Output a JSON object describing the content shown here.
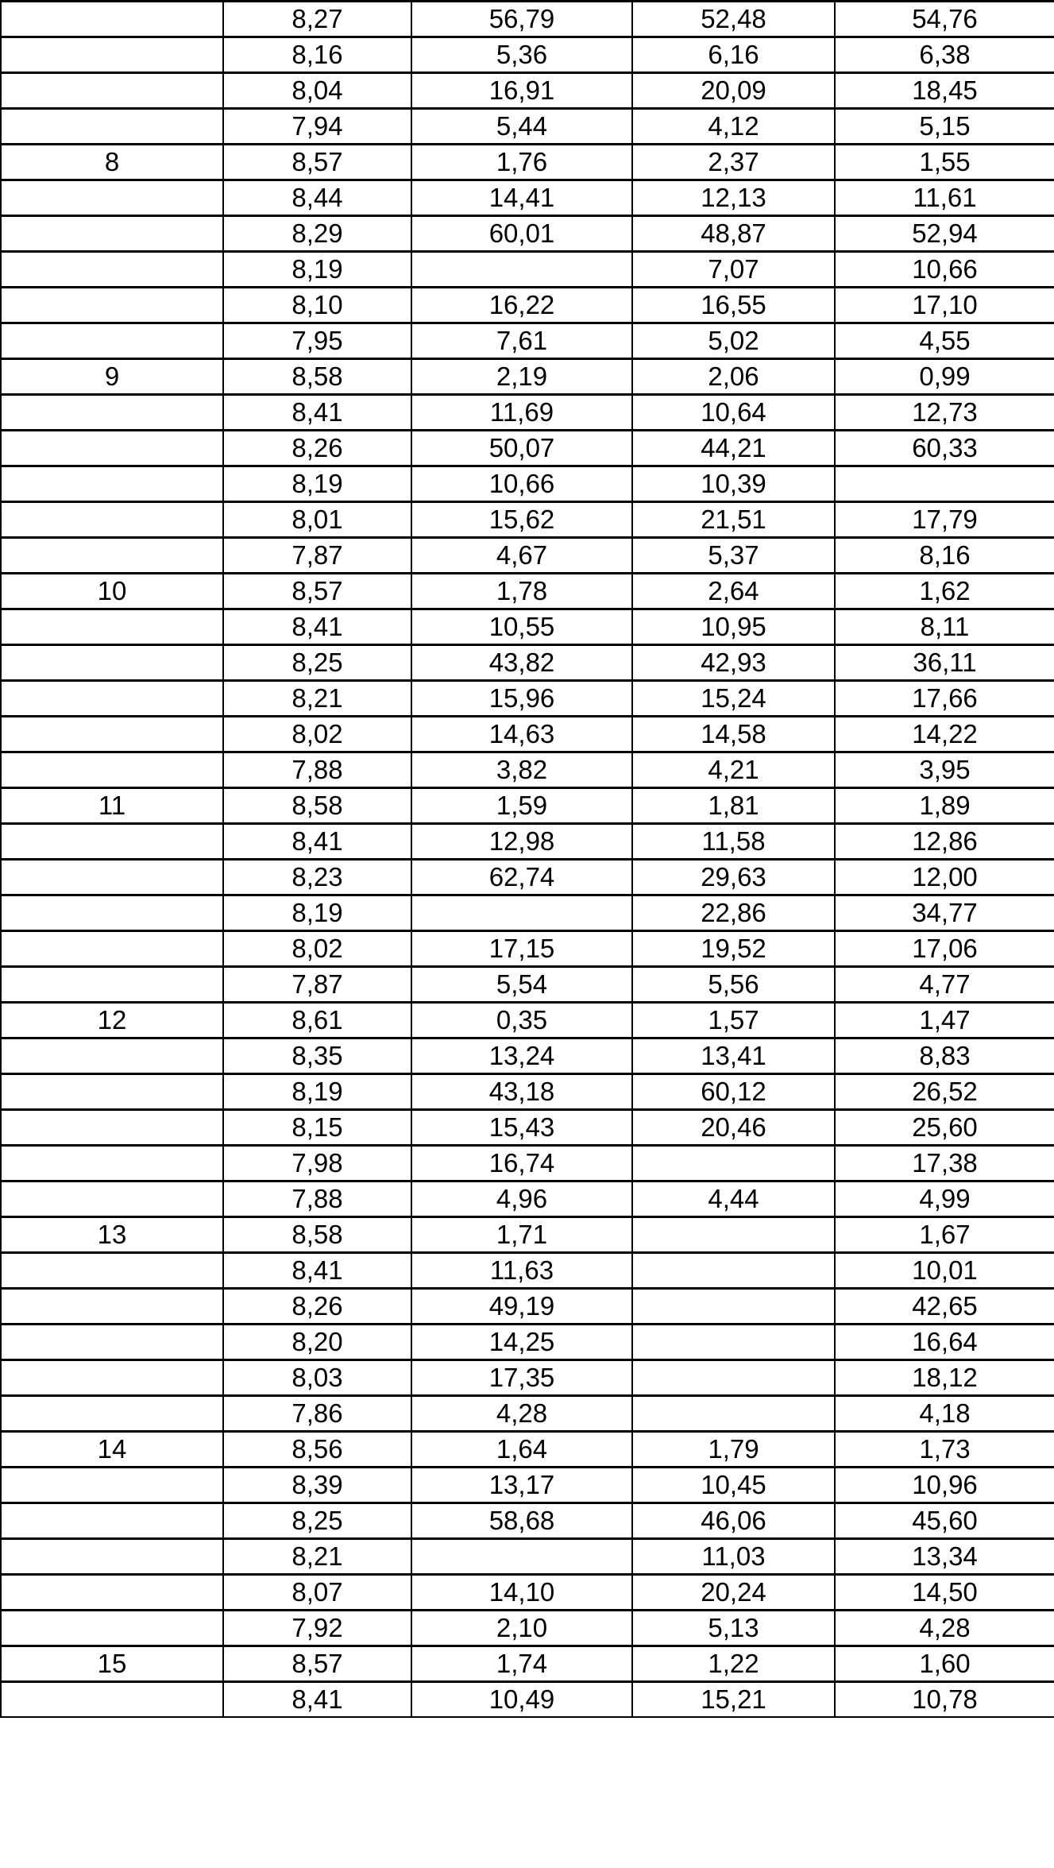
{
  "rows": [
    [
      "",
      "8,27",
      "56,79",
      "52,48",
      "54,76"
    ],
    [
      "",
      "8,16",
      "5,36",
      "6,16",
      "6,38"
    ],
    [
      "",
      "8,04",
      "16,91",
      "20,09",
      "18,45"
    ],
    [
      "",
      "7,94",
      "5,44",
      "4,12",
      "5,15"
    ],
    [
      "8",
      "8,57",
      "1,76",
      "2,37",
      "1,55"
    ],
    [
      "",
      "8,44",
      "14,41",
      "12,13",
      "11,61"
    ],
    [
      "",
      "8,29",
      "60,01",
      "48,87",
      "52,94"
    ],
    [
      "",
      "8,19",
      "",
      "7,07",
      "10,66"
    ],
    [
      "",
      "8,10",
      "16,22",
      "16,55",
      "17,10"
    ],
    [
      "",
      "7,95",
      "7,61",
      "5,02",
      "4,55"
    ],
    [
      "9",
      "8,58",
      "2,19",
      "2,06",
      "0,99"
    ],
    [
      "",
      "8,41",
      "11,69",
      "10,64",
      "12,73"
    ],
    [
      "",
      "8,26",
      "50,07",
      "44,21",
      "60,33"
    ],
    [
      "",
      "8,19",
      "10,66",
      "10,39",
      ""
    ],
    [
      "",
      "8,01",
      "15,62",
      "21,51",
      "17,79"
    ],
    [
      "",
      "7,87",
      "4,67",
      "5,37",
      "8,16"
    ],
    [
      "10",
      "8,57",
      "1,78",
      "2,64",
      "1,62"
    ],
    [
      "",
      "8,41",
      "10,55",
      "10,95",
      "8,11"
    ],
    [
      "",
      "8,25",
      "43,82",
      "42,93",
      "36,11"
    ],
    [
      "",
      "8,21",
      "15,96",
      "15,24",
      "17,66"
    ],
    [
      "",
      "8,02",
      "14,63",
      "14,58",
      "14,22"
    ],
    [
      "",
      "7,88",
      "3,82",
      "4,21",
      "3,95"
    ],
    [
      "11",
      "8,58",
      "1,59",
      "1,81",
      "1,89"
    ],
    [
      "",
      "8,41",
      "12,98",
      "11,58",
      "12,86"
    ],
    [
      "",
      "8,23",
      "62,74",
      "29,63",
      "12,00"
    ],
    [
      "",
      "8,19",
      "",
      "22,86",
      "34,77"
    ],
    [
      "",
      "8,02",
      "17,15",
      "19,52",
      "17,06"
    ],
    [
      "",
      "7,87",
      "5,54",
      "5,56",
      "4,77"
    ],
    [
      "12",
      "8,61",
      "0,35",
      "1,57",
      "1,47"
    ],
    [
      "",
      "8,35",
      "13,24",
      "13,41",
      "8,83"
    ],
    [
      "",
      "8,19",
      "43,18",
      "60,12",
      "26,52"
    ],
    [
      "",
      "8,15",
      "15,43",
      "20,46",
      "25,60"
    ],
    [
      "",
      "7,98",
      "16,74",
      "",
      "17,38"
    ],
    [
      "",
      "7,88",
      "4,96",
      "4,44",
      "4,99"
    ],
    [
      "13",
      "8,58",
      "1,71",
      "",
      "1,67"
    ],
    [
      "",
      "8,41",
      "11,63",
      "",
      "10,01"
    ],
    [
      "",
      "8,26",
      "49,19",
      "",
      "42,65"
    ],
    [
      "",
      "8,20",
      "14,25",
      "",
      "16,64"
    ],
    [
      "",
      "8,03",
      "17,35",
      "",
      "18,12"
    ],
    [
      "",
      "7,86",
      "4,28",
      "",
      "4,18"
    ],
    [
      "14",
      "8,56",
      "1,64",
      "1,79",
      "1,73"
    ],
    [
      "",
      "8,39",
      "13,17",
      "10,45",
      "10,96"
    ],
    [
      "",
      "8,25",
      "58,68",
      "46,06",
      "45,60"
    ],
    [
      "",
      "8,21",
      "",
      "11,03",
      "13,34"
    ],
    [
      "",
      "8,07",
      "14,10",
      "20,24",
      "14,50"
    ],
    [
      "",
      "7,92",
      "2,10",
      "5,13",
      "4,28"
    ],
    [
      "15",
      "8,57",
      "1,74",
      "1,22",
      "1,60"
    ],
    [
      "",
      "8,41",
      "10,49",
      "15,21",
      "10,78"
    ]
  ]
}
